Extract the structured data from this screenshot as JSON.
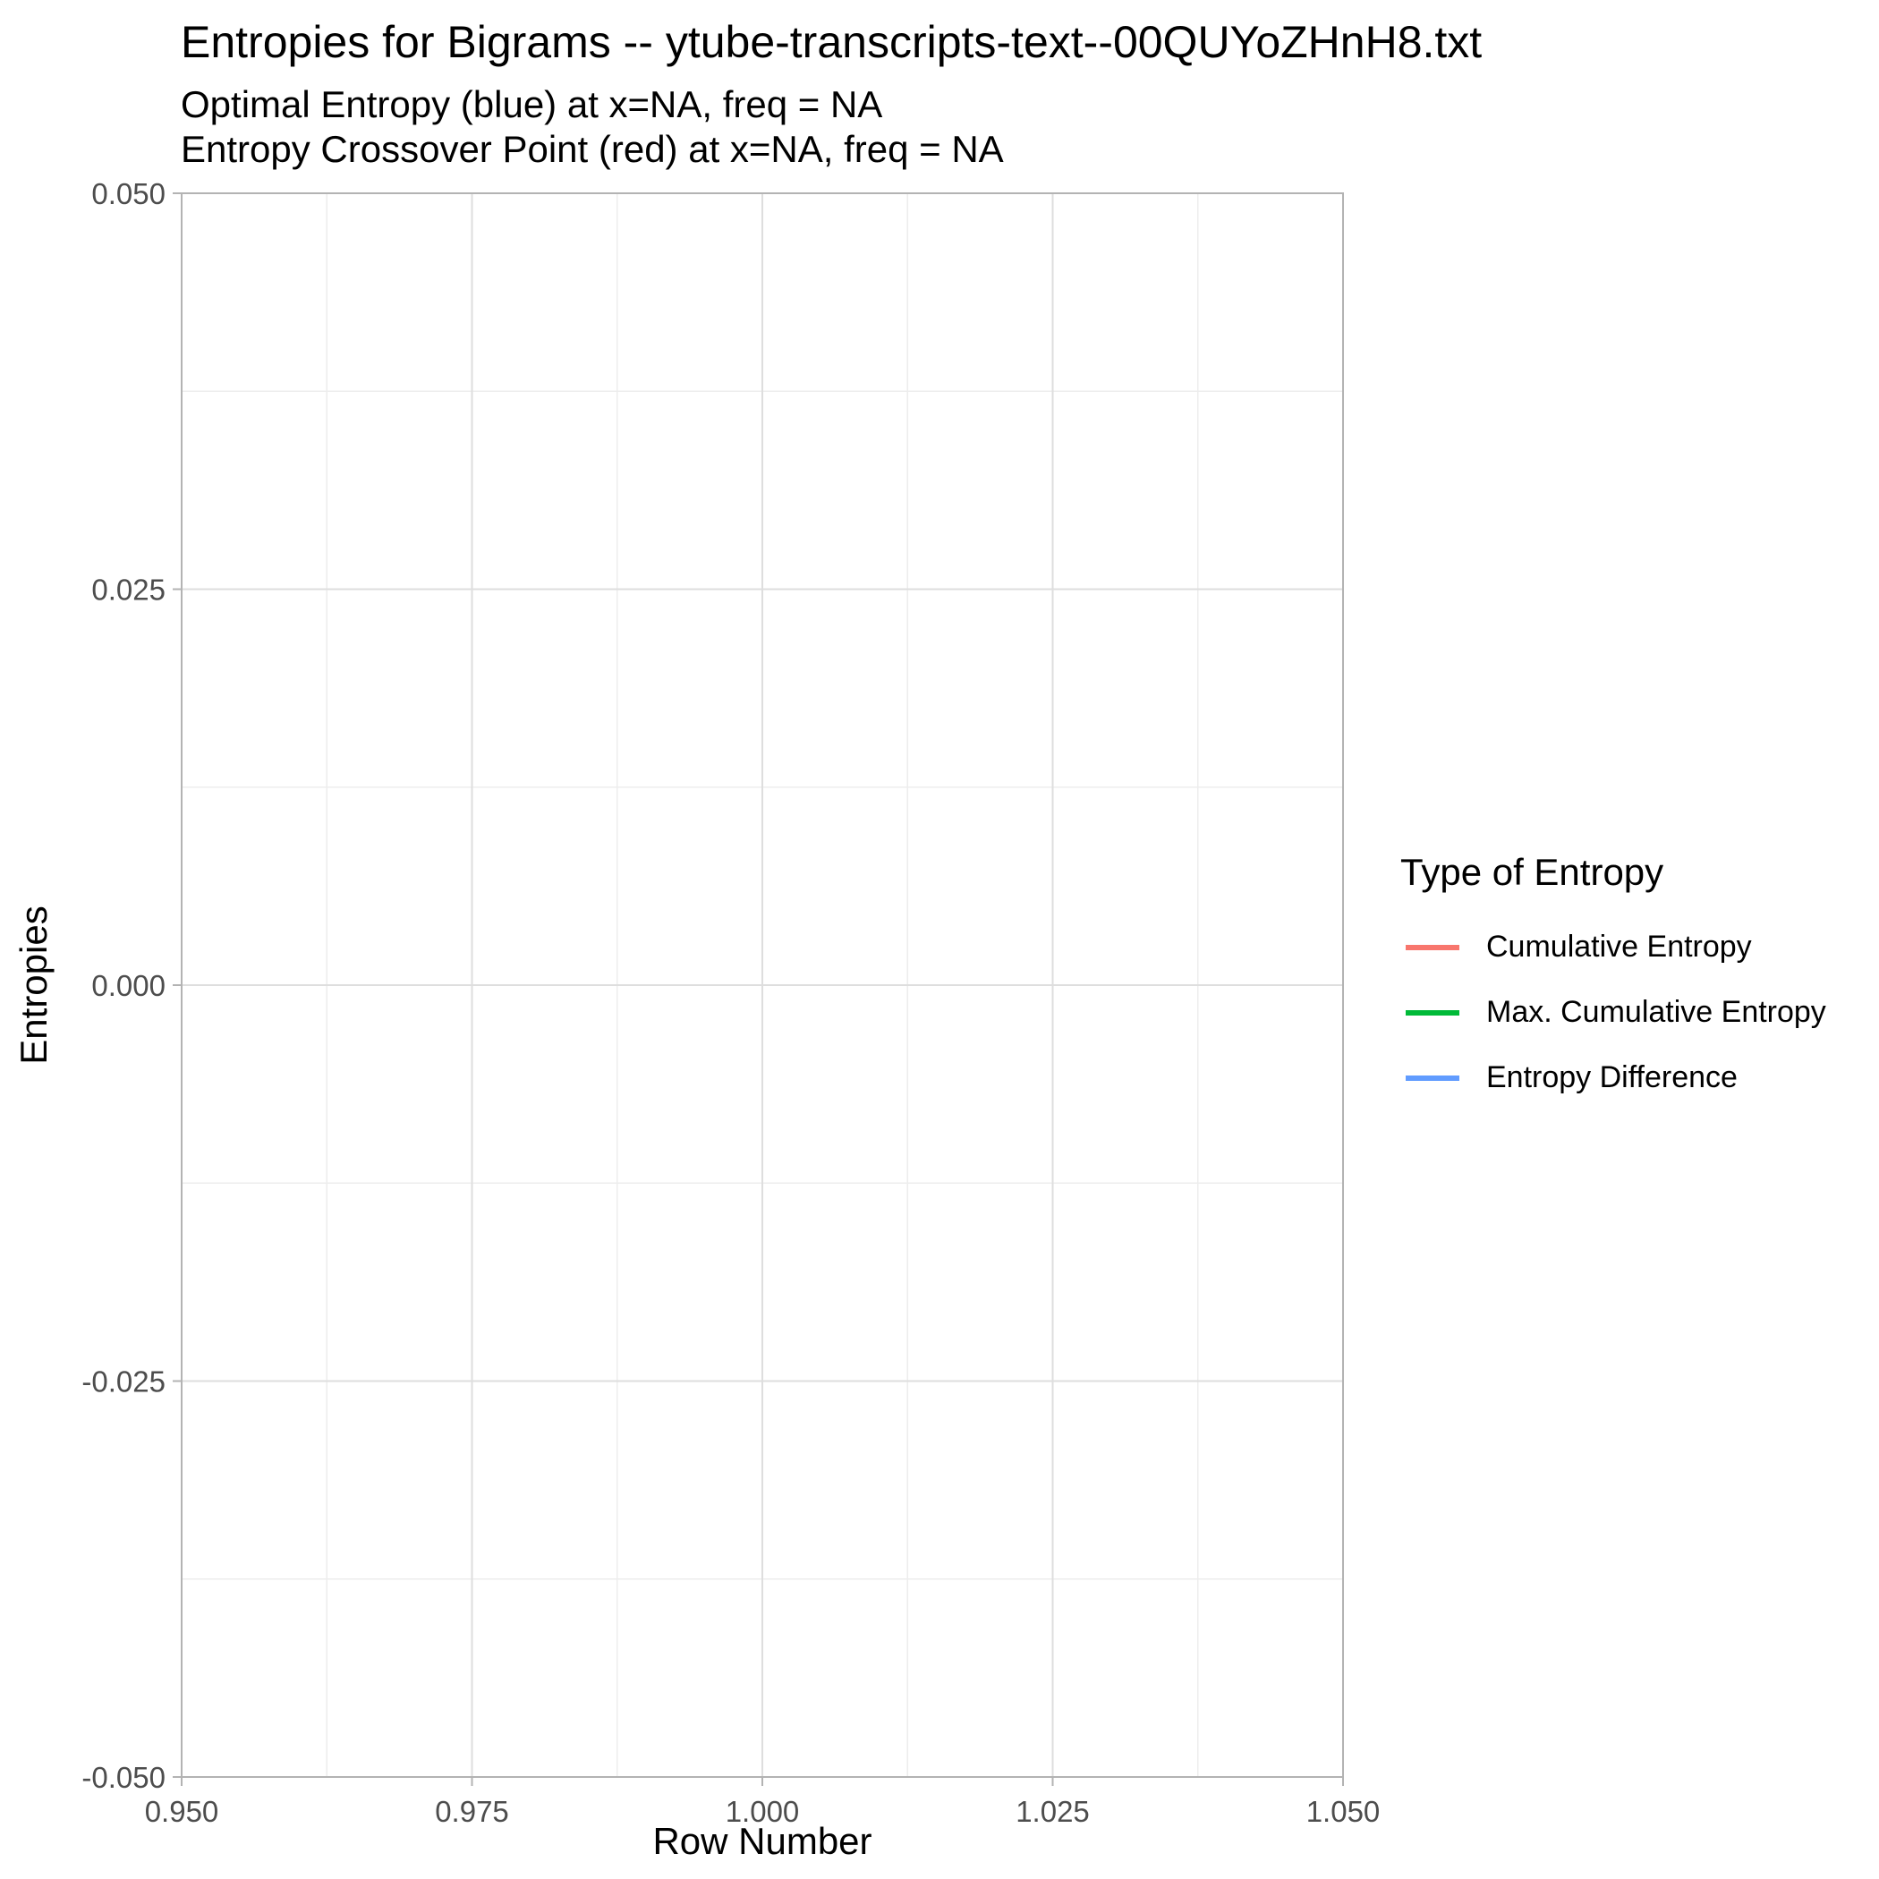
{
  "chart_data": {
    "type": "line",
    "title": "Entropies for Bigrams -- ytube-transcripts-text--00QUYoZHnH8.txt",
    "subtitle_lines": [
      "Optimal Entropy (blue) at x=NA, freq = NA",
      "Entropy Crossover Point (red) at x=NA, freq = NA"
    ],
    "xlabel": "Row Number",
    "ylabel": "Entropies",
    "xlim": [
      0.95,
      1.05
    ],
    "ylim": [
      -0.05,
      0.05
    ],
    "x_ticks": [
      0.95,
      0.975,
      1.0,
      1.025,
      1.05
    ],
    "x_tick_labels": [
      "0.950",
      "0.975",
      "1.000",
      "1.025",
      "1.050"
    ],
    "y_ticks": [
      -0.05,
      -0.025,
      0.0,
      0.025,
      0.05
    ],
    "y_tick_labels": [
      "-0.050",
      "-0.025",
      "0.000",
      "0.025",
      "0.050"
    ],
    "grid": true,
    "legend": {
      "title": "Type of Entropy",
      "position": "right",
      "items": [
        {
          "label": "Cumulative Entropy",
          "color": "#F8766D"
        },
        {
          "label": "Max. Cumulative Entropy",
          "color": "#00BA38"
        },
        {
          "label": "Entropy Difference",
          "color": "#619CFF"
        }
      ]
    },
    "series": [
      {
        "name": "Cumulative Entropy",
        "color": "#F8766D",
        "x": [],
        "y": []
      },
      {
        "name": "Max. Cumulative Entropy",
        "color": "#00BA38",
        "x": [],
        "y": []
      },
      {
        "name": "Entropy Difference",
        "color": "#619CFF",
        "x": [],
        "y": []
      }
    ]
  }
}
